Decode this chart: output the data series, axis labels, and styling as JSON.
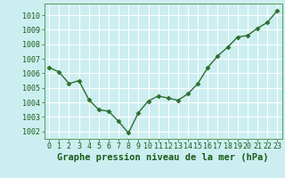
{
  "x": [
    0,
    1,
    2,
    3,
    4,
    5,
    6,
    7,
    8,
    9,
    10,
    11,
    12,
    13,
    14,
    15,
    16,
    17,
    18,
    19,
    20,
    21,
    22,
    23
  ],
  "y": [
    1006.4,
    1006.1,
    1005.3,
    1005.5,
    1004.2,
    1003.5,
    1003.4,
    1002.7,
    1001.9,
    1003.3,
    1004.1,
    1004.45,
    1004.3,
    1004.15,
    1004.6,
    1005.3,
    1006.4,
    1007.2,
    1007.8,
    1008.5,
    1008.6,
    1009.1,
    1009.5,
    1010.3
  ],
  "line_color": "#2d6e2d",
  "marker": "D",
  "marker_size": 2.5,
  "bg_color": "#cceef0",
  "grid_color": "#ffffff",
  "xlabel": "Graphe pression niveau de la mer (hPa)",
  "xlabel_color": "#1a5c1a",
  "tick_color": "#1a5c1a",
  "ylim": [
    1001.5,
    1010.8
  ],
  "xlim": [
    -0.5,
    23.5
  ],
  "yticks": [
    1002,
    1003,
    1004,
    1005,
    1006,
    1007,
    1008,
    1009,
    1010
  ],
  "xticks": [
    0,
    1,
    2,
    3,
    4,
    5,
    6,
    7,
    8,
    9,
    10,
    11,
    12,
    13,
    14,
    15,
    16,
    17,
    18,
    19,
    20,
    21,
    22,
    23
  ],
  "xtick_labels": [
    "0",
    "1",
    "2",
    "3",
    "4",
    "5",
    "6",
    "7",
    "8",
    "9",
    "10",
    "11",
    "12",
    "13",
    "14",
    "15",
    "16",
    "17",
    "18",
    "19",
    "20",
    "21",
    "22",
    "23"
  ],
  "ytick_labels": [
    "1002",
    "1003",
    "1004",
    "1005",
    "1006",
    "1007",
    "1008",
    "1009",
    "1010"
  ],
  "tick_fontsize": 6.0,
  "xlabel_fontsize": 7.5,
  "line_width": 1.0
}
